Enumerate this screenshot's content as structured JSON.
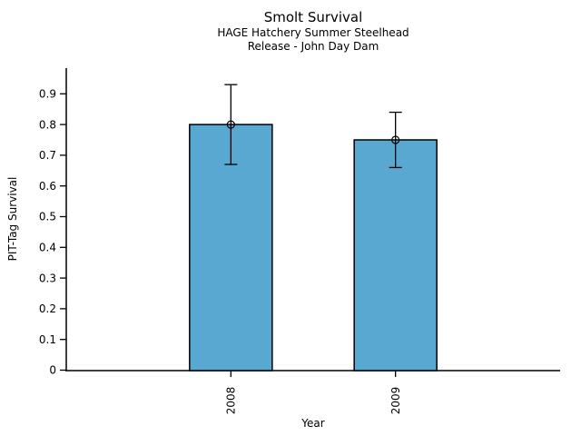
{
  "chart_data": {
    "type": "bar",
    "title": "Smolt Survival",
    "subtitle": [
      "HAGE Hatchery Summer Steelhead",
      "Release - John Day Dam"
    ],
    "categories": [
      "2008",
      "2009"
    ],
    "values": [
      0.8,
      0.75
    ],
    "error_low": [
      0.67,
      0.66
    ],
    "error_high": [
      0.93,
      0.84
    ],
    "xlabel": "Year",
    "ylabel": "PIT-Tag Survival",
    "ylim": [
      0,
      0.98
    ],
    "yticks": [
      0,
      0.1,
      0.2,
      0.3,
      0.4,
      0.5,
      0.6,
      0.7,
      0.8,
      0.9
    ],
    "ytick_labels": [
      "0",
      "0.1",
      "0.2",
      "0.3",
      "0.4",
      "0.5",
      "0.6",
      "0.7",
      "0.8",
      "0.9"
    ],
    "grid": false,
    "legend": "none",
    "marker": "open-circle",
    "colors": {
      "bar_fill": "#58A8D2",
      "bar_edge": "#000000",
      "error_bar": "#000000",
      "axis": "#000000",
      "text": "#000000",
      "background": "#FFFFFF"
    }
  }
}
